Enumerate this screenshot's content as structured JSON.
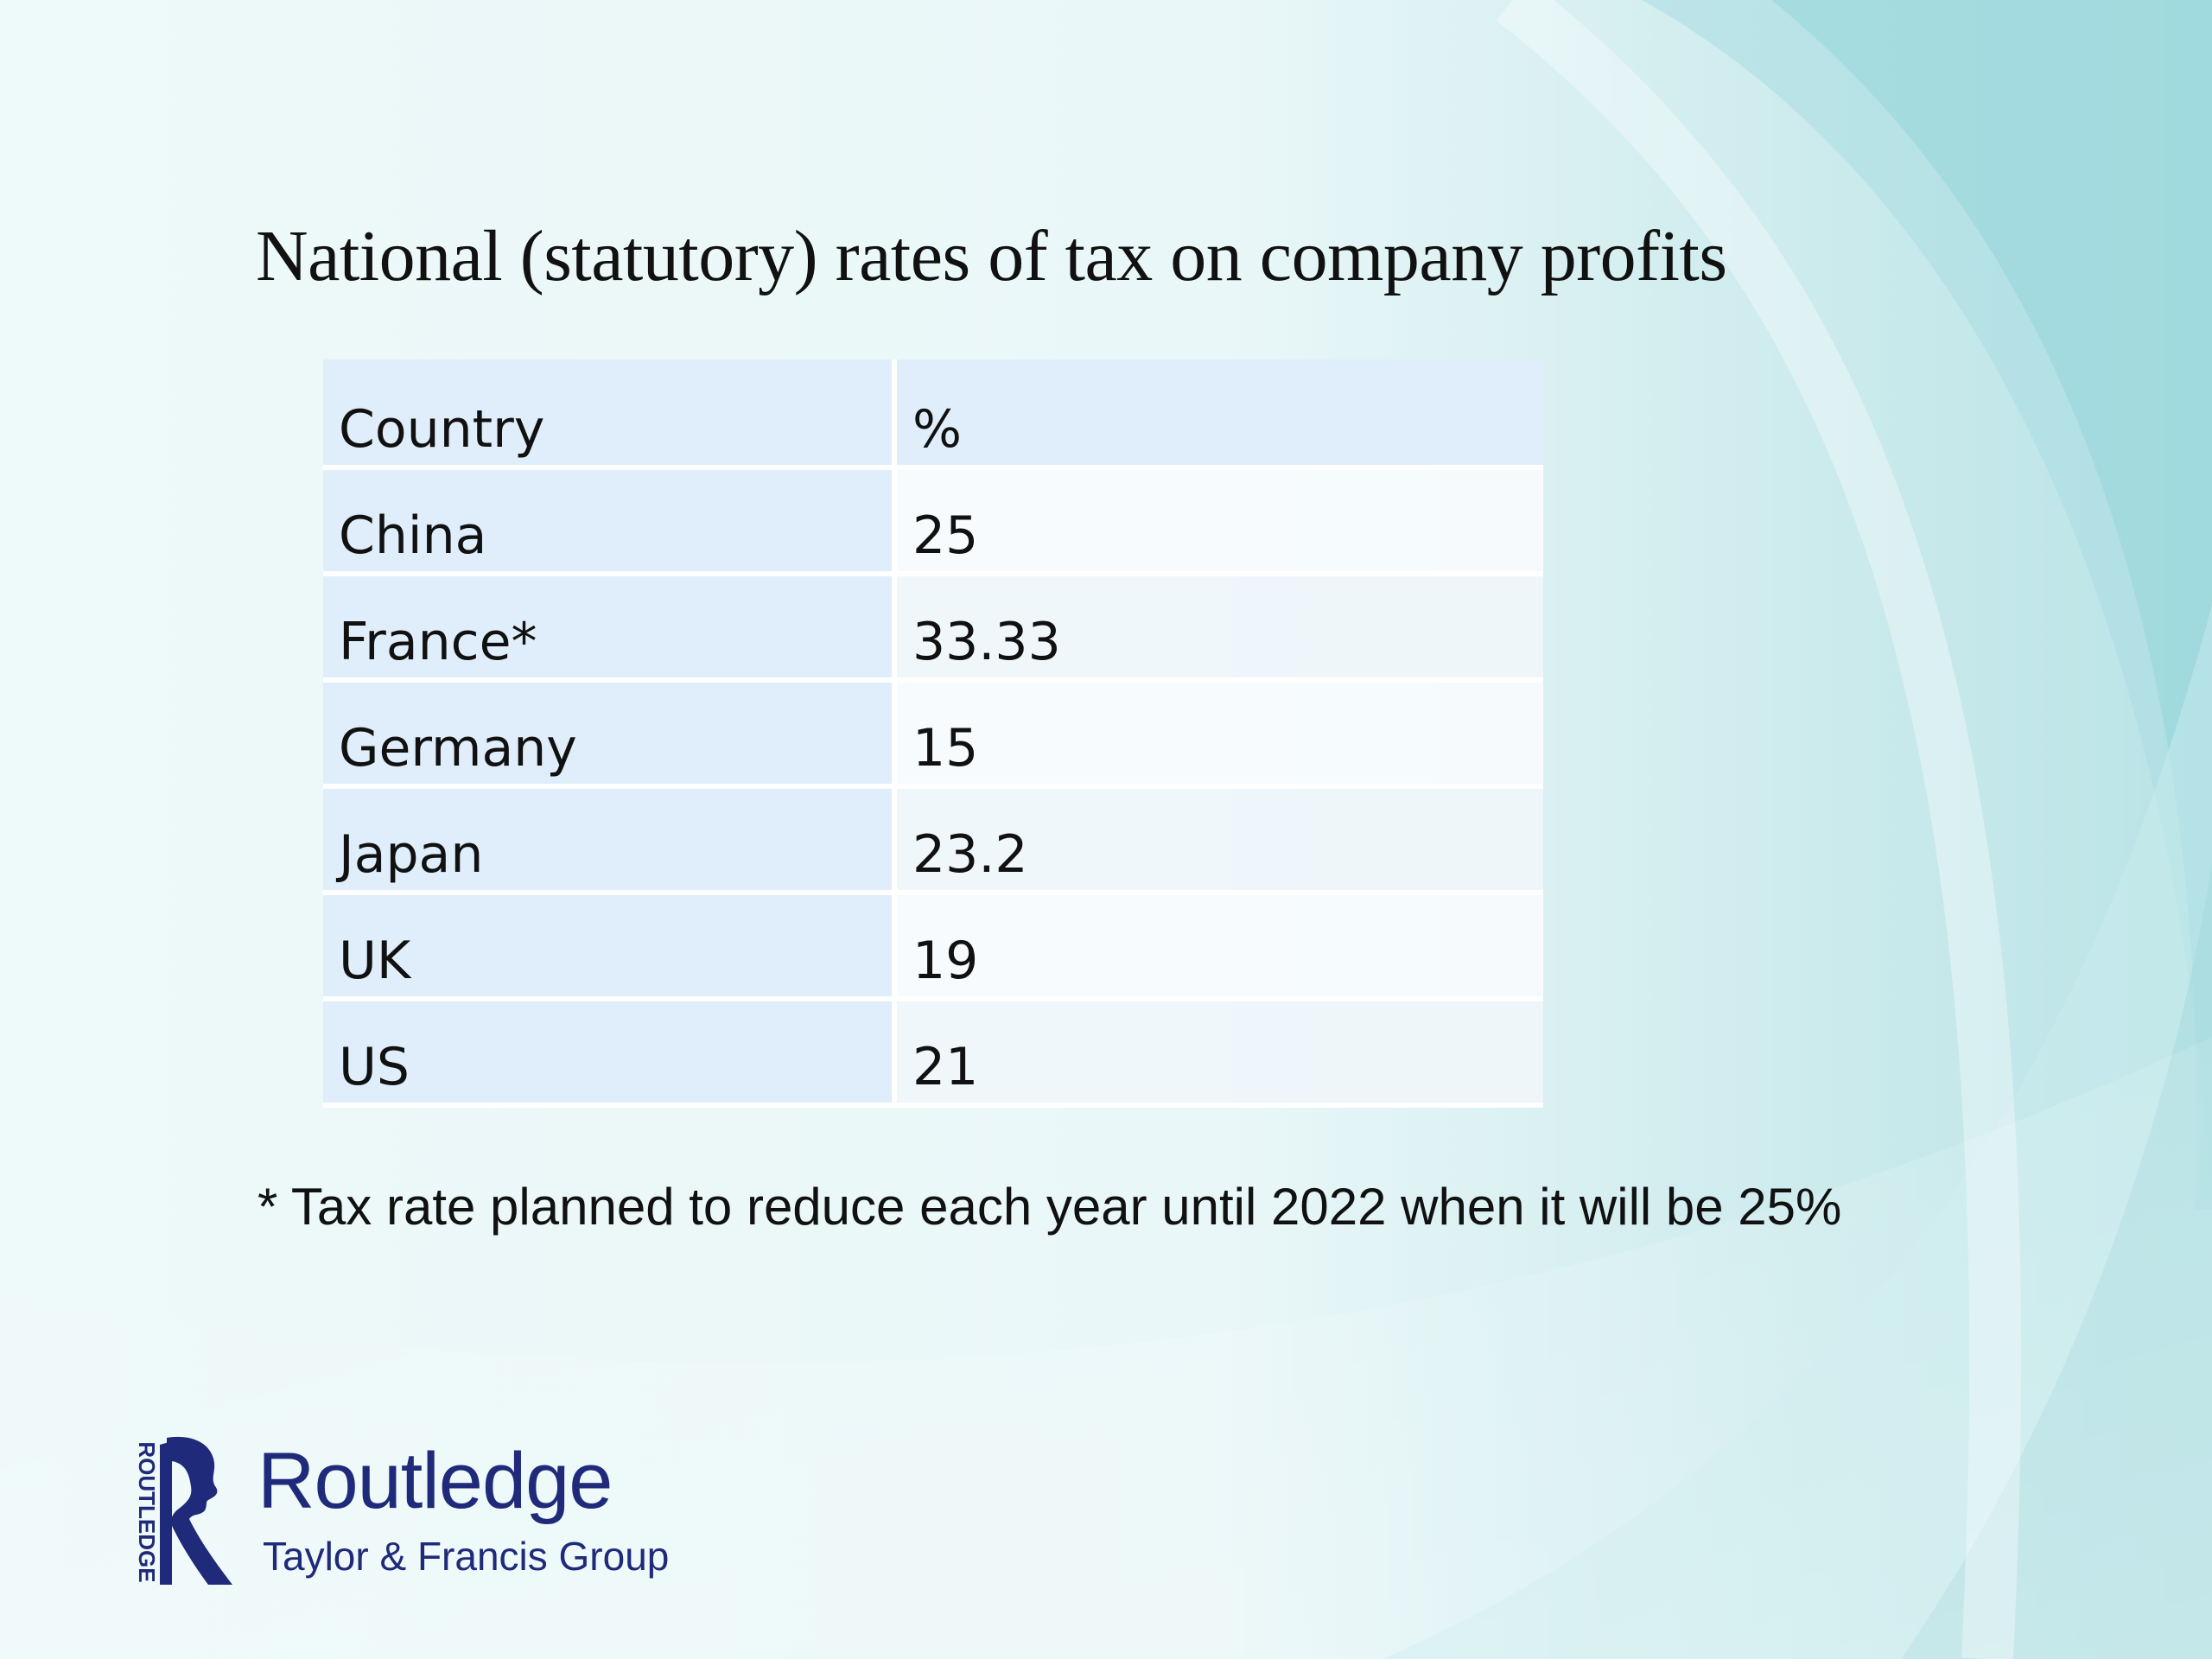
{
  "slide": {
    "title": "National (statutory) rates of tax on company profits",
    "footnote": "* Tax rate planned to reduce each year until 2022 when it will be 25%"
  },
  "table": {
    "headers": [
      "Country",
      "%"
    ],
    "rows": [
      [
        "China",
        "25"
      ],
      [
        "France*",
        "33.33"
      ],
      [
        "Germany",
        "15"
      ],
      [
        "Japan",
        "23.2"
      ],
      [
        "UK",
        "19"
      ],
      [
        "US",
        "21"
      ]
    ]
  },
  "brand": {
    "name": "Routledge",
    "subtitle": "Taylor & Francis Group",
    "logo_vertical_text": "ROUTLEDGE",
    "color": "#1f2a7a"
  }
}
